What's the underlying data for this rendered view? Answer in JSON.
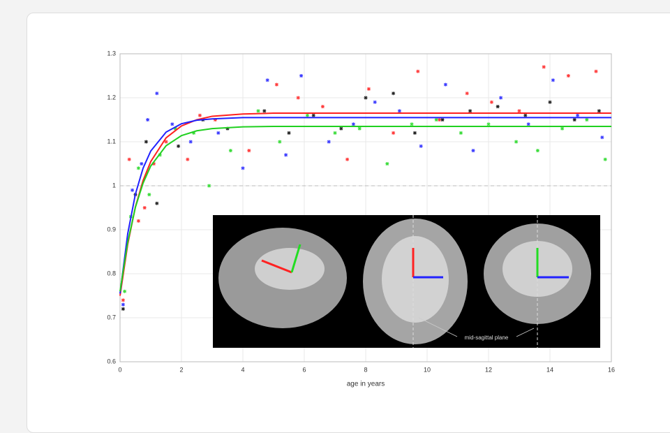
{
  "chart_data": {
    "type": "scatter",
    "x_label": "age in years",
    "annotation": "mid-sagittal plane",
    "xlim": [
      0,
      16
    ],
    "ylim": [
      0.6,
      1.3
    ],
    "xticks": [
      0,
      2,
      4,
      6,
      8,
      10,
      12,
      14,
      16
    ],
    "yticks": [
      0.6,
      0.7,
      0.8,
      0.9,
      1,
      1.1,
      1.2,
      1.3
    ],
    "grid": true,
    "hline": 1,
    "series": [
      {
        "color": "#ff3b3b",
        "x": [
          0.1,
          0.3,
          0.6,
          0.8,
          1.1,
          1.5,
          2.2,
          2.6,
          3.1,
          4.2,
          5.1,
          5.8,
          6.6,
          7.4,
          8.1,
          8.9,
          9.7,
          10.4,
          11.3,
          12.1,
          13.0,
          13.8,
          14.6,
          15.5
        ],
        "values": [
          0.74,
          1.06,
          0.92,
          0.95,
          1.05,
          1.1,
          1.06,
          1.16,
          1.15,
          1.08,
          1.23,
          1.2,
          1.18,
          1.06,
          1.22,
          1.12,
          1.26,
          1.15,
          1.21,
          1.19,
          1.17,
          1.27,
          1.25,
          1.26
        ]
      },
      {
        "color": "#3b3bff",
        "x": [
          0.1,
          0.4,
          0.7,
          0.9,
          1.2,
          1.7,
          2.3,
          3.2,
          4.0,
          4.8,
          5.4,
          5.9,
          6.8,
          7.6,
          8.3,
          9.1,
          9.8,
          10.6,
          11.5,
          12.4,
          13.3,
          14.1,
          14.9,
          15.7
        ],
        "values": [
          0.73,
          0.99,
          1.05,
          1.15,
          1.21,
          1.14,
          1.1,
          1.12,
          1.04,
          1.24,
          1.07,
          1.25,
          1.1,
          1.14,
          1.19,
          1.17,
          1.09,
          1.23,
          1.08,
          1.2,
          1.14,
          1.24,
          1.16,
          1.11
        ]
      },
      {
        "color": "#3bdc3b",
        "x": [
          0.15,
          0.35,
          0.6,
          0.95,
          1.3,
          1.8,
          2.4,
          2.9,
          3.6,
          4.5,
          5.2,
          6.1,
          7.0,
          7.8,
          8.7,
          9.5,
          10.3,
          11.1,
          12.0,
          12.9,
          13.6,
          14.4,
          15.2,
          15.8
        ],
        "values": [
          0.76,
          0.93,
          1.04,
          0.98,
          1.07,
          1.13,
          1.12,
          1.0,
          1.08,
          1.17,
          1.1,
          1.16,
          1.12,
          1.13,
          1.05,
          1.14,
          1.15,
          1.12,
          1.14,
          1.1,
          1.08,
          1.13,
          1.15,
          1.06
        ]
      },
      {
        "color": "#222222",
        "x": [
          0.1,
          0.5,
          0.85,
          1.2,
          1.9,
          2.7,
          3.5,
          4.7,
          5.5,
          6.3,
          7.2,
          8.0,
          8.9,
          9.6,
          10.5,
          11.4,
          12.3,
          13.2,
          14.0,
          14.8,
          15.6
        ],
        "values": [
          0.72,
          0.98,
          1.1,
          0.96,
          1.09,
          1.15,
          1.13,
          1.17,
          1.12,
          1.16,
          1.13,
          1.2,
          1.21,
          1.12,
          1.15,
          1.17,
          1.18,
          1.16,
          1.19,
          1.15,
          1.17
        ]
      }
    ],
    "lines": [
      {
        "color": "#ff2020",
        "x": [
          0,
          0.25,
          0.5,
          0.75,
          1,
          1.5,
          2,
          2.5,
          3,
          4,
          5,
          6,
          8,
          10,
          12,
          14,
          16
        ],
        "values": [
          0.75,
          0.867,
          0.952,
          1.012,
          1.055,
          1.109,
          1.136,
          1.15,
          1.158,
          1.163,
          1.165,
          1.165,
          1.165,
          1.165,
          1.165,
          1.165,
          1.165
        ]
      },
      {
        "color": "#2020ff",
        "x": [
          0,
          0.25,
          0.5,
          0.75,
          1,
          1.5,
          2,
          2.5,
          3,
          4,
          5,
          6,
          8,
          10,
          12,
          14,
          16
        ],
        "values": [
          0.755,
          0.891,
          0.981,
          1.04,
          1.079,
          1.122,
          1.141,
          1.149,
          1.152,
          1.155,
          1.155,
          1.155,
          1.155,
          1.155,
          1.155,
          1.155,
          1.155
        ]
      },
      {
        "color": "#20d020",
        "x": [
          0,
          0.25,
          0.5,
          0.75,
          1,
          1.5,
          2,
          2.5,
          3,
          4,
          5,
          6,
          8,
          10,
          12,
          14,
          16
        ],
        "values": [
          0.76,
          0.872,
          0.951,
          1.006,
          1.045,
          1.091,
          1.114,
          1.125,
          1.13,
          1.134,
          1.135,
          1.135,
          1.135,
          1.135,
          1.135,
          1.135,
          1.135
        ]
      }
    ]
  }
}
